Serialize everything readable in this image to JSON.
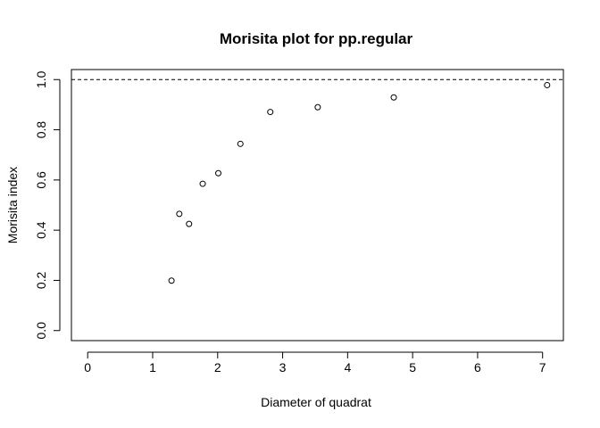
{
  "chart_data": {
    "type": "scatter",
    "title": "Morisita plot for pp.regular",
    "xlabel": "Diameter of quadrat",
    "ylabel": "Morisita index",
    "xlim": [
      -0.25,
      7.32
    ],
    "ylim": [
      -0.04,
      1.04
    ],
    "xticks": [
      0,
      1,
      2,
      3,
      4,
      5,
      6,
      7
    ],
    "yticks": [
      0.0,
      0.2,
      0.4,
      0.6,
      0.8,
      1.0
    ],
    "xtick_labels": [
      "0",
      "1",
      "2",
      "3",
      "4",
      "5",
      "6",
      "7"
    ],
    "ytick_labels": [
      "0.0",
      "0.2",
      "0.4",
      "0.6",
      "0.8",
      "1.0"
    ],
    "reference_line": {
      "y": 1.0,
      "style": "dashed"
    },
    "grid": false,
    "points": [
      {
        "x": 1.29,
        "y": 0.199
      },
      {
        "x": 1.41,
        "y": 0.465
      },
      {
        "x": 1.56,
        "y": 0.425
      },
      {
        "x": 1.77,
        "y": 0.585
      },
      {
        "x": 2.01,
        "y": 0.627
      },
      {
        "x": 2.35,
        "y": 0.744
      },
      {
        "x": 2.81,
        "y": 0.871
      },
      {
        "x": 3.54,
        "y": 0.89
      },
      {
        "x": 4.71,
        "y": 0.929
      },
      {
        "x": 7.07,
        "y": 0.978
      }
    ]
  }
}
